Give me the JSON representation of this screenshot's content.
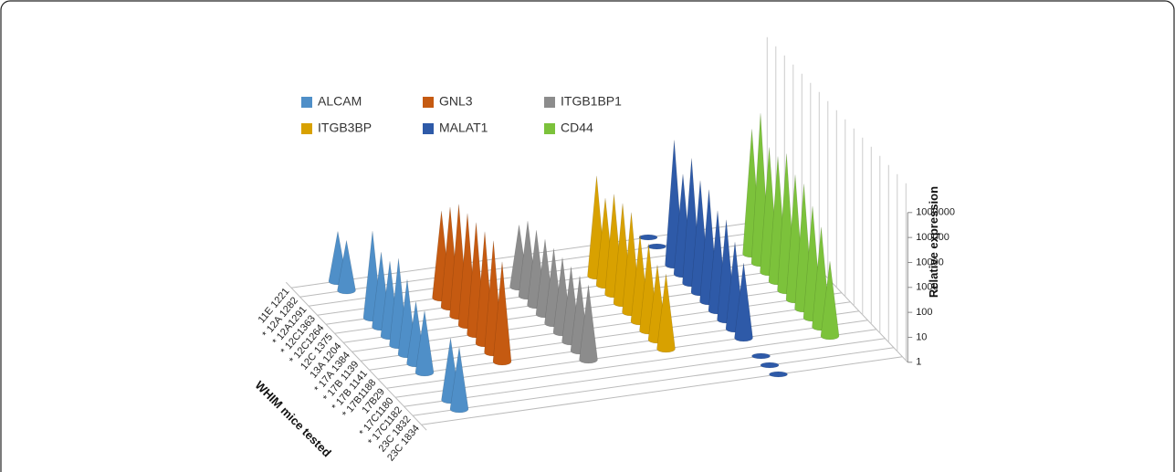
{
  "chart_data": {
    "type": "cone3d",
    "x_label": "WHIM mice tested",
    "y_label": "Relative expression",
    "log_scale": true,
    "ylim": [
      1,
      1000000
    ],
    "yticks": [
      1,
      10,
      100,
      1000,
      10000,
      100000,
      1000000
    ],
    "categories": [
      "11E 1221",
      "* 12A 1282",
      "* 12A1291",
      "* 12C1363",
      "* 12C1264",
      "12C 1375",
      "13A 1204",
      "* 17A 1384",
      "* 17B 1139",
      "* 17B 1141",
      "* 17B1188",
      "17B29",
      "* 17C1180",
      "* 17C1182",
      "23C 1832",
      "23C 1834"
    ],
    "series": [
      {
        "name": "ALCAM",
        "color": "#4f8fc8",
        "values": [
          100,
          100,
          null,
          null,
          3000,
          1000,
          1000,
          3000,
          1000,
          300,
          300,
          null,
          null,
          300,
          300,
          null
        ]
      },
      {
        "name": "GNL3",
        "color": "#c55a11",
        "values": [
          null,
          null,
          null,
          3000,
          10000,
          30000,
          30000,
          30000,
          30000,
          30000,
          10000,
          null,
          null,
          null,
          null,
          null
        ]
      },
      {
        "name": "ITGB1BP1",
        "color": "#8c8c8c",
        "values": [
          null,
          null,
          null,
          300,
          1000,
          1000,
          1000,
          1000,
          1000,
          1000,
          1000,
          1000,
          null,
          null,
          null,
          null
        ]
      },
      {
        "name": "ITGB3BP",
        "color": "#d8a100",
        "values": [
          null,
          null,
          null,
          10000,
          3000,
          10000,
          10000,
          10000,
          3000,
          3000,
          1000,
          1000,
          null,
          null,
          null,
          null
        ]
      },
      {
        "name": "MALAT1",
        "color": "#2e5aa8",
        "values": [
          1,
          1,
          null,
          100000,
          10000,
          100000,
          30000,
          30000,
          10000,
          10000,
          3000,
          1000,
          null,
          1,
          1,
          1
        ]
      },
      {
        "name": "CD44",
        "color": "#7cc23b",
        "values": [
          null,
          null,
          null,
          100000,
          1000000,
          100000,
          100000,
          300000,
          100000,
          100000,
          30000,
          10000,
          1000,
          null,
          null,
          null
        ]
      }
    ]
  }
}
